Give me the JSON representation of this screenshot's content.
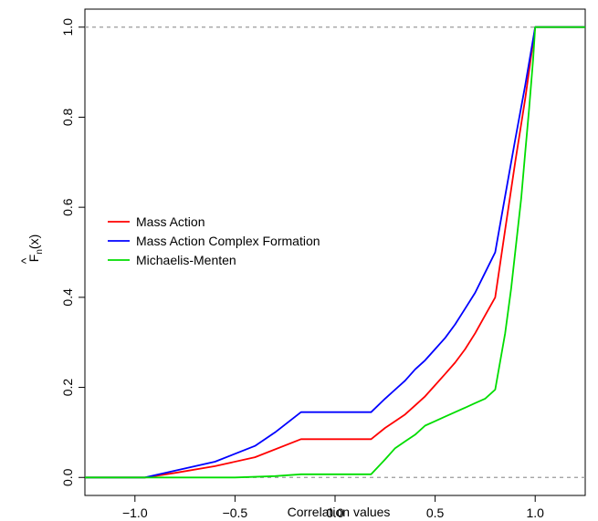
{
  "chart_data": {
    "type": "line",
    "title": "",
    "xlabel": "Correlation values",
    "ylabel": {
      "base": "F",
      "hat": "^",
      "subscript": "n",
      "suffix": "(x)"
    },
    "xlim": [
      -1.25,
      1.25
    ],
    "ylim": [
      -0.04,
      1.04
    ],
    "x_ticks": [
      -1.0,
      -0.5,
      0.0,
      0.5,
      1.0
    ],
    "x_tick_labels": [
      "−1.0",
      "−0.5",
      "0.0",
      "0.5",
      "1.0"
    ],
    "y_ticks": [
      0.0,
      0.2,
      0.4,
      0.6,
      0.8,
      1.0
    ],
    "y_tick_labels": [
      "0.0",
      "0.2",
      "0.4",
      "0.6",
      "0.8",
      "1.0"
    ],
    "reference_lines": [
      0.0,
      1.0
    ],
    "grid": false,
    "legend_position": "middle-left",
    "series": [
      {
        "name": "Mass Action",
        "color": "#ff0000",
        "x": [
          -1.25,
          -0.95,
          -0.8,
          -0.6,
          -0.4,
          -0.17,
          0.18,
          0.25,
          0.3,
          0.35,
          0.4,
          0.45,
          0.5,
          0.55,
          0.6,
          0.65,
          0.7,
          0.75,
          0.8,
          0.85,
          0.9,
          0.95,
          1.0,
          1.25
        ],
        "y": [
          0.0,
          0.0,
          0.01,
          0.025,
          0.045,
          0.085,
          0.085,
          0.11,
          0.125,
          0.14,
          0.16,
          0.18,
          0.205,
          0.23,
          0.255,
          0.285,
          0.32,
          0.36,
          0.4,
          0.55,
          0.7,
          0.84,
          1.0,
          1.0
        ]
      },
      {
        "name": "Mass Action Complex Formation",
        "color": "#0000ff",
        "x": [
          -1.25,
          -0.95,
          -0.8,
          -0.6,
          -0.4,
          -0.3,
          -0.17,
          0.18,
          0.25,
          0.3,
          0.35,
          0.4,
          0.45,
          0.5,
          0.55,
          0.6,
          0.65,
          0.7,
          0.75,
          0.8,
          0.85,
          0.9,
          0.95,
          1.0,
          1.25
        ],
        "y": [
          0.0,
          0.0,
          0.015,
          0.035,
          0.07,
          0.1,
          0.145,
          0.145,
          0.175,
          0.195,
          0.215,
          0.24,
          0.26,
          0.285,
          0.31,
          0.34,
          0.375,
          0.41,
          0.455,
          0.5,
          0.625,
          0.75,
          0.87,
          1.0,
          1.0
        ]
      },
      {
        "name": "Michaelis-Menten",
        "color": "#00dd00",
        "x": [
          -1.25,
          -0.5,
          -0.3,
          -0.17,
          0.18,
          0.25,
          0.3,
          0.35,
          0.4,
          0.45,
          0.5,
          0.55,
          0.6,
          0.65,
          0.7,
          0.75,
          0.8,
          0.85,
          0.88,
          0.9,
          0.93,
          0.95,
          0.97,
          0.99,
          1.0,
          1.25
        ],
        "y": [
          0.0,
          0.0,
          0.003,
          0.007,
          0.007,
          0.04,
          0.065,
          0.08,
          0.095,
          0.115,
          0.125,
          0.135,
          0.145,
          0.155,
          0.165,
          0.175,
          0.195,
          0.32,
          0.42,
          0.5,
          0.62,
          0.72,
          0.82,
          0.93,
          1.0,
          1.0
        ]
      }
    ]
  }
}
